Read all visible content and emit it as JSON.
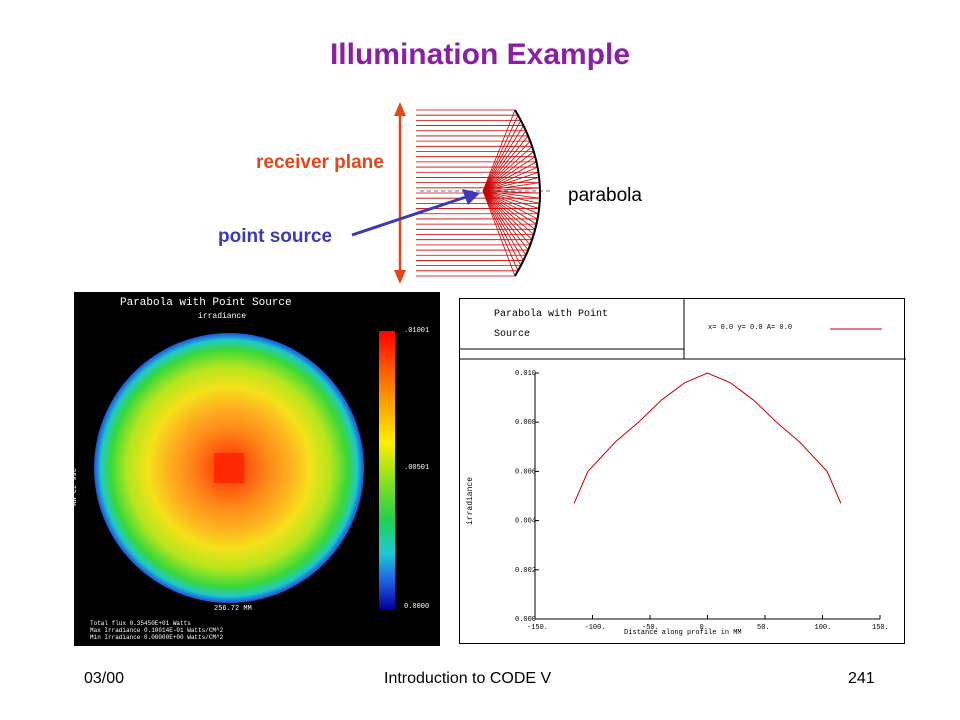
{
  "slide": {
    "title": "Illumination Example",
    "receiver_label": "receiver plane",
    "point_source_label": "point source",
    "parabola_label": "parabola"
  },
  "irradiance_map": {
    "title": "Parabola with Point Source",
    "subtitle": "irradiance",
    "side_label": "256.72 MM",
    "bottom_label": "256.72 MM",
    "scale_max": ".01001",
    "scale_mid": ".00501",
    "scale_min": "0.0000",
    "stats": [
      "Total flux  0.35450E+01 Watts",
      "Max Irradiance  0.10014E-01 Watts/CM^2",
      "Min Irradiance  0.00000E+00 Watts/CM^2"
    ]
  },
  "profile_plot": {
    "header_title_line1": "Parabola with Point",
    "header_title_line2": "Source",
    "legend": "x=  0.0 y=  0.0 A=  0.0"
  },
  "chart_data": {
    "type": "line",
    "title": "",
    "xlabel": "Distance along profile in MM",
    "ylabel": "irradiance",
    "xlim": [
      -150,
      150
    ],
    "ylim": [
      0.0,
      0.01
    ],
    "x_ticks": [
      "-150.",
      "-100.",
      "-50.",
      "0.",
      "50.",
      "100.",
      "150."
    ],
    "y_ticks": [
      "0.000",
      "0.002",
      "0.004",
      "0.006",
      "0.008",
      "0.010"
    ],
    "series": [
      {
        "color": "#cc0000",
        "x": [
          -116,
          -104,
          -92,
          -80,
          -60,
          -40,
          -20,
          0,
          20,
          40,
          60,
          80,
          92,
          104,
          116
        ],
        "y": [
          0.0047,
          0.006,
          0.0066,
          0.0072,
          0.008,
          0.0089,
          0.0096,
          0.01,
          0.0096,
          0.0089,
          0.008,
          0.0072,
          0.0066,
          0.006,
          0.0047
        ]
      }
    ]
  },
  "footer": {
    "date": "03/00",
    "course": "Introduction to CODE V",
    "page": "241"
  }
}
